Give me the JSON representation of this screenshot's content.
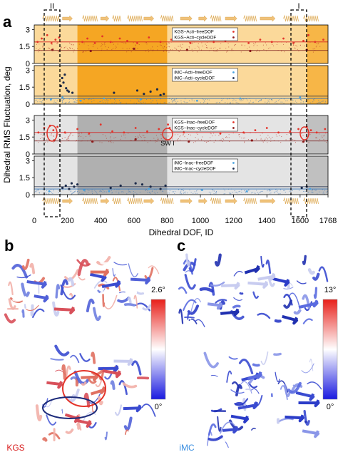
{
  "panel_labels": {
    "a": "a",
    "b": "b",
    "c": "c"
  },
  "chart_data": {
    "type": "scatter",
    "xlabel": "Dihedral DOF, ID",
    "ylabel": "Dihedral RMS Fluctuation, deg",
    "xlim": [
      0,
      1768
    ],
    "x_ticks": [
      "0",
      "200",
      "400",
      "600",
      "800",
      "1000",
      "1200",
      "1400",
      "1600",
      "1768"
    ],
    "region_labels": {
      "left": "II",
      "right": "I"
    },
    "annotation": "SW I",
    "panels": [
      {
        "ylim": [
          0,
          3.4
        ],
        "y_ticks": [
          "0",
          "1.5",
          "3"
        ],
        "theme": "active",
        "legend": [
          "KGS−Acti−freeDOF",
          "KGS−Acti−cycleDOF"
        ],
        "colors": [
          "#e3342a",
          "#8b1a1a"
        ],
        "series": [
          {
            "name": "KGS−Acti−freeDOF",
            "x": [
              20,
              45,
              78,
              104,
              128,
              150,
              290,
              320,
              365,
              410,
              460,
              515,
              560,
              620,
              690,
              760,
              825,
              880,
              940,
              1010,
              1080,
              1150,
              1220,
              1290,
              1360,
              1430,
              1500,
              1560,
              1620,
              1650,
              1690,
              1740
            ],
            "y": [
              1.9,
              2.2,
              2.5,
              1.8,
              2.1,
              2.3,
              1.9,
              2.2,
              1.8,
              2.4,
              1.9,
              2.2,
              2.0,
              1.8,
              2.3,
              1.9,
              2.1,
              2.3,
              1.8,
              2.2,
              1.9,
              2.0,
              2.4,
              1.8,
              2.1,
              1.9,
              2.2,
              1.8,
              2.0,
              2.5,
              1.9,
              2.1
            ]
          },
          {
            "name": "KGS−Acti−cycleDOF",
            "x": [
              110,
              340,
              600,
              920,
              1300,
              1640
            ],
            "y": [
              1.2,
              1.1,
              1.3,
              1.2,
              1.1,
              1.2
            ]
          }
        ]
      },
      {
        "ylim": [
          0,
          3.4
        ],
        "y_ticks": [
          "0",
          "1.5",
          "3"
        ],
        "theme": "active",
        "legend": [
          "iMC−Acti−freeDOF",
          "iMC−Acti−cycleDOF"
        ],
        "colors": [
          "#4aa3df",
          "#1b2a4a"
        ],
        "series": [
          {
            "name": "iMC−Acti−freeDOF",
            "x": [
              100,
              170,
              280,
              420,
              640,
              980,
              1240,
              1600
            ],
            "y": [
              0.4,
              0.6,
              0.3,
              0.5,
              0.4,
              0.3,
              0.5,
              0.6
            ]
          },
          {
            "name": "iMC−Acti−cycleDOF",
            "x": [
              160,
              168,
              176,
              184,
              192,
              200,
              208,
              230,
              480,
              620,
              660,
              700,
              740,
              760,
              780
            ],
            "y": [
              1.6,
              2.3,
              1.9,
              2.6,
              1.4,
              1.2,
              1.1,
              1.0,
              1.0,
              1.2,
              0.9,
              1.1,
              1.3,
              0.8,
              0.9
            ]
          }
        ]
      },
      {
        "ylim": [
          0,
          3.4
        ],
        "y_ticks": [
          "0",
          "1.5",
          "3"
        ],
        "theme": "inactive",
        "legend": [
          "KGS−Inac−freeDOF",
          "KGS−Inac−cycleDOF"
        ],
        "colors": [
          "#e3342a",
          "#8b1a1a"
        ],
        "series": [
          {
            "name": "KGS−Inac−freeDOF",
            "x": [
              25,
              60,
              95,
              115,
              140,
              185,
              260,
              330,
              400,
              470,
              540,
              610,
              680,
              750,
              805,
              815,
              840,
              900,
              980,
              1050,
              1120,
              1190,
              1260,
              1330,
              1400,
              1470,
              1540,
              1590,
              1640,
              1665,
              1700,
              1750
            ],
            "y": [
              1.9,
              2.3,
              2.5,
              2.1,
              2.4,
              1.9,
              2.2,
              1.8,
              2.6,
              2.0,
              1.9,
              2.3,
              2.0,
              2.2,
              2.6,
              2.3,
              2.8,
              1.9,
              2.1,
              2.4,
              1.8,
              2.2,
              1.9,
              2.1,
              2.3,
              1.9,
              2.0,
              2.2,
              2.4,
              2.1,
              1.9,
              2.2
            ]
          },
          {
            "name": "KGS−Inac−cycleDOF",
            "x": [
              120,
              350,
              610,
              930,
              1310,
              1620
            ],
            "y": [
              1.2,
              1.1,
              1.3,
              1.1,
              1.2,
              1.1
            ]
          }
        ]
      },
      {
        "ylim": [
          0,
          3.4
        ],
        "y_ticks": [
          "0",
          "1.5",
          "3"
        ],
        "theme": "inactive",
        "legend": [
          "iMC−Inac−freeDOF",
          "iMC−Inac−cycleDOF"
        ],
        "colors": [
          "#4aa3df",
          "#1b2a4a"
        ],
        "series": [
          {
            "name": "iMC−Inac−freeDOF",
            "x": [
              90,
              210,
              300,
              450,
              690,
              1010,
              1280,
              1610,
              1660
            ],
            "y": [
              0.3,
              0.5,
              0.4,
              0.3,
              0.5,
              0.4,
              0.3,
              0.6,
              0.5
            ]
          },
          {
            "name": "iMC−Inac−cycleDOF",
            "x": [
              170,
              190,
              210,
              225,
              240,
              260,
              460,
              520,
              610,
              650,
              700,
              760,
              790,
              1610,
              1640
            ],
            "y": [
              0.6,
              0.8,
              0.5,
              1.0,
              0.7,
              0.9,
              0.6,
              0.8,
              1.0,
              0.9,
              0.7,
              0.5,
              0.8,
              0.6,
              0.7
            ]
          }
        ]
      }
    ]
  },
  "structure_panels": {
    "b": {
      "colorbar_max": "2.6°",
      "colorbar_min": "0°",
      "label": "KGS"
    },
    "c": {
      "colorbar_max": "13°",
      "colorbar_min": "0°",
      "label": "iMC"
    }
  }
}
